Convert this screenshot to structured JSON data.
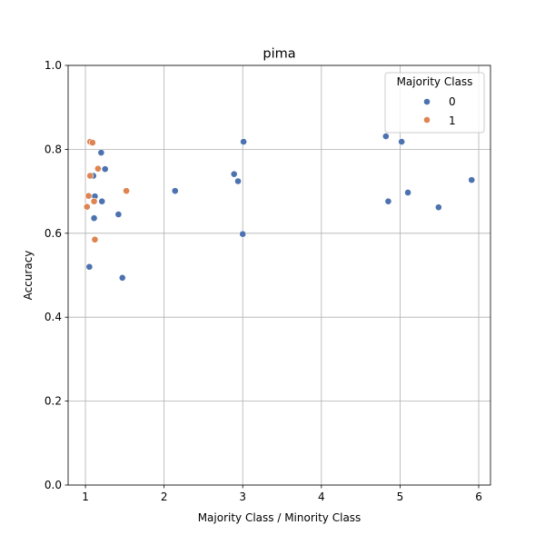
{
  "chart_data": {
    "type": "scatter",
    "title": "pima",
    "xlabel": "Majority Class / Minority Class",
    "ylabel": "Accuracy",
    "xlim": [
      0.78,
      6.15
    ],
    "ylim": [
      0.0,
      1.0
    ],
    "xticks": [
      "1",
      "2",
      "3",
      "4",
      "5",
      "6"
    ],
    "yticks": [
      "0.0",
      "0.2",
      "0.4",
      "0.6",
      "0.8",
      "1.0"
    ],
    "grid": true,
    "legend": {
      "title": "Majority Class",
      "placement": "top-right",
      "labels": [
        "0",
        "1"
      ]
    },
    "series": [
      {
        "name": "0",
        "color": "#4c72b0",
        "points": [
          [
            1.05,
            0.52
          ],
          [
            1.1,
            0.737
          ],
          [
            1.12,
            0.688
          ],
          [
            1.11,
            0.636
          ],
          [
            1.2,
            0.792
          ],
          [
            1.21,
            0.676
          ],
          [
            1.25,
            0.753
          ],
          [
            1.42,
            0.645
          ],
          [
            1.47,
            0.494
          ],
          [
            2.14,
            0.701
          ],
          [
            2.89,
            0.741
          ],
          [
            2.94,
            0.724
          ],
          [
            3.0,
            0.598
          ],
          [
            3.01,
            0.818
          ],
          [
            4.82,
            0.831
          ],
          [
            4.85,
            0.676
          ],
          [
            5.02,
            0.818
          ],
          [
            5.1,
            0.697
          ],
          [
            5.49,
            0.662
          ],
          [
            5.91,
            0.727
          ]
        ]
      },
      {
        "name": "1",
        "color": "#dd8452",
        "points": [
          [
            1.02,
            0.663
          ],
          [
            1.04,
            0.689
          ],
          [
            1.06,
            0.737
          ],
          [
            1.06,
            0.818
          ],
          [
            1.09,
            0.816
          ],
          [
            1.11,
            0.676
          ],
          [
            1.12,
            0.585
          ],
          [
            1.16,
            0.754
          ],
          [
            1.52,
            0.701
          ]
        ]
      }
    ]
  }
}
